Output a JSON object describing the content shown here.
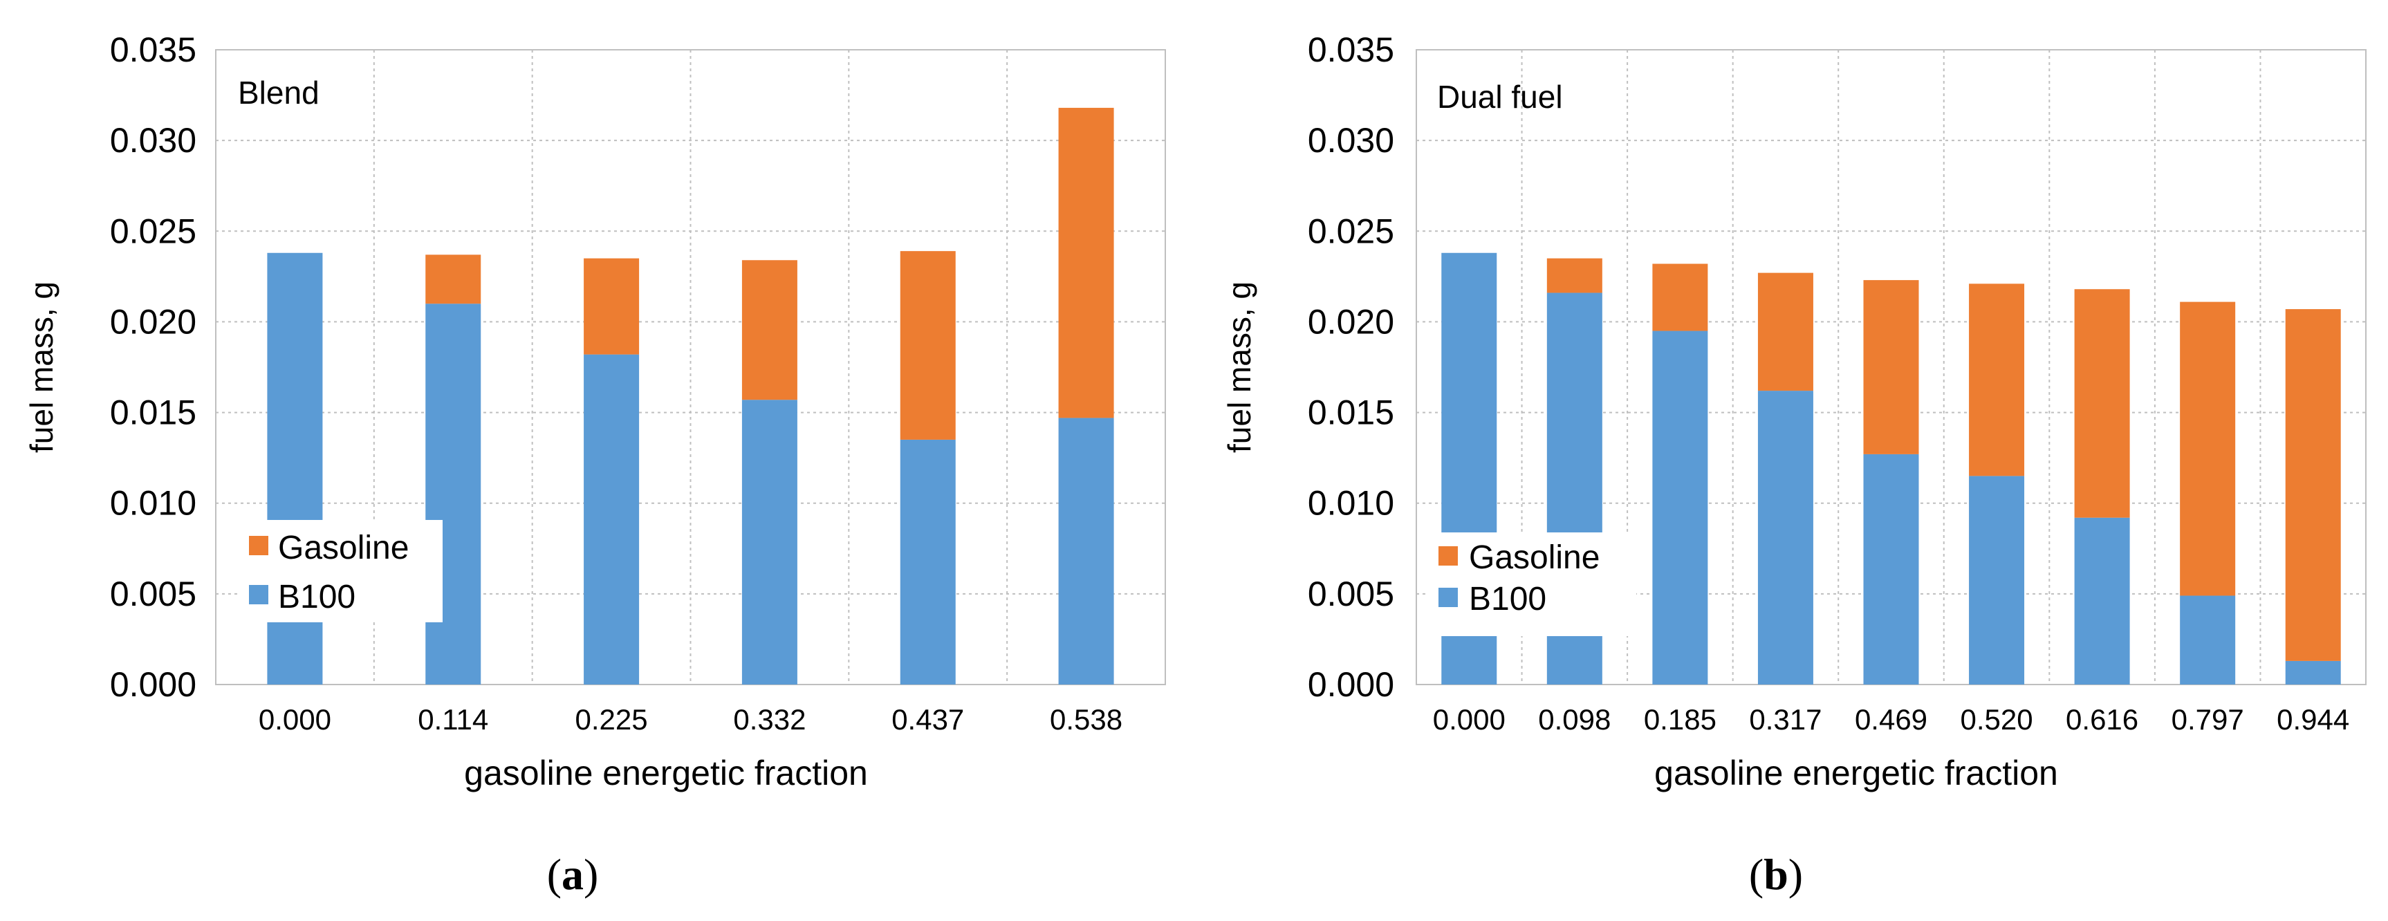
{
  "colors": {
    "b100": "#5B9BD5",
    "gasoline": "#ED7D31",
    "grid": "#BFBFBF",
    "frame": "#BFBFBF"
  },
  "chart_data": [
    {
      "type": "bar",
      "stacked": true,
      "panel_label": "a",
      "title": "Blend",
      "xlabel": "gasoline energetic fraction",
      "ylabel": "fuel mass, g",
      "ylim": [
        0,
        0.035
      ],
      "yticks": [
        "0.000",
        "0.005",
        "0.010",
        "0.015",
        "0.020",
        "0.025",
        "0.030",
        "0.035"
      ],
      "categories": [
        "0.000",
        "0.114",
        "0.225",
        "0.332",
        "0.437",
        "0.538"
      ],
      "legend_position": "lower-left",
      "grid": true,
      "series": [
        {
          "name": "B100",
          "color": "#5B9BD5",
          "values": [
            0.0238,
            0.021,
            0.0182,
            0.0157,
            0.0135,
            0.0147
          ]
        },
        {
          "name": "Gasoline",
          "color": "#ED7D31",
          "values": [
            0.0,
            0.0027,
            0.0053,
            0.0077,
            0.0104,
            0.0171
          ]
        }
      ],
      "legend": [
        "Gasoline",
        "B100"
      ]
    },
    {
      "type": "bar",
      "stacked": true,
      "panel_label": "b",
      "title": "Dual fuel",
      "xlabel": "gasoline energetic fraction",
      "ylabel": "fuel mass, g",
      "ylim": [
        0,
        0.035
      ],
      "yticks": [
        "0.000",
        "0.005",
        "0.010",
        "0.015",
        "0.020",
        "0.025",
        "0.030",
        "0.035"
      ],
      "categories": [
        "0.000",
        "0.098",
        "0.185",
        "0.317",
        "0.469",
        "0.520",
        "0.616",
        "0.797",
        "0.944"
      ],
      "legend_position": "lower-left",
      "grid": true,
      "series": [
        {
          "name": "B100",
          "color": "#5B9BD5",
          "values": [
            0.0238,
            0.0216,
            0.0195,
            0.0162,
            0.0127,
            0.0115,
            0.0092,
            0.0049,
            0.0013
          ]
        },
        {
          "name": "Gasoline",
          "color": "#ED7D31",
          "values": [
            0.0,
            0.0019,
            0.0037,
            0.0065,
            0.0096,
            0.0106,
            0.0126,
            0.0162,
            0.0194
          ]
        }
      ],
      "legend": [
        "Gasoline",
        "B100"
      ]
    }
  ]
}
